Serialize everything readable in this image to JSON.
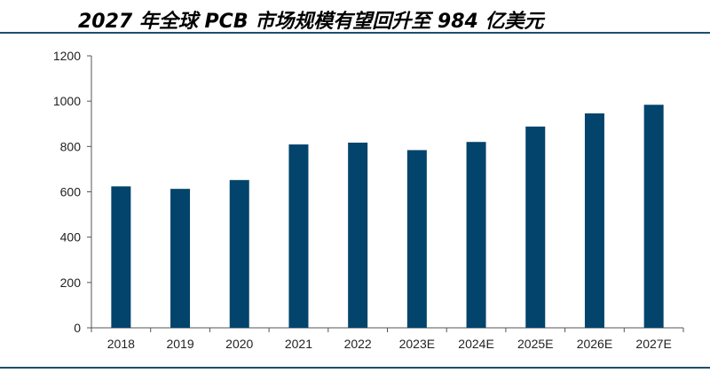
{
  "title": "2027 年全球 PCB 市场规模有望回升至 984 亿美元",
  "colors": {
    "bar": "#02446b",
    "axis": "#555555",
    "rule": "#1f4e6e"
  },
  "chart_data": {
    "type": "bar",
    "title": "2027 年全球 PCB 市场规模有望回升至 984 亿美元",
    "categories": [
      "2018",
      "2019",
      "2020",
      "2021",
      "2022",
      "2023E",
      "2024E",
      "2025E",
      "2026E",
      "2027E"
    ],
    "values": [
      624,
      613,
      652,
      809,
      817,
      784,
      820,
      888,
      946,
      984
    ],
    "xlabel": "",
    "ylabel": "",
    "ylim": [
      0,
      1200
    ],
    "yticks": [
      0,
      200,
      400,
      600,
      800,
      1000,
      1200
    ],
    "grid": false,
    "legend": "none"
  }
}
